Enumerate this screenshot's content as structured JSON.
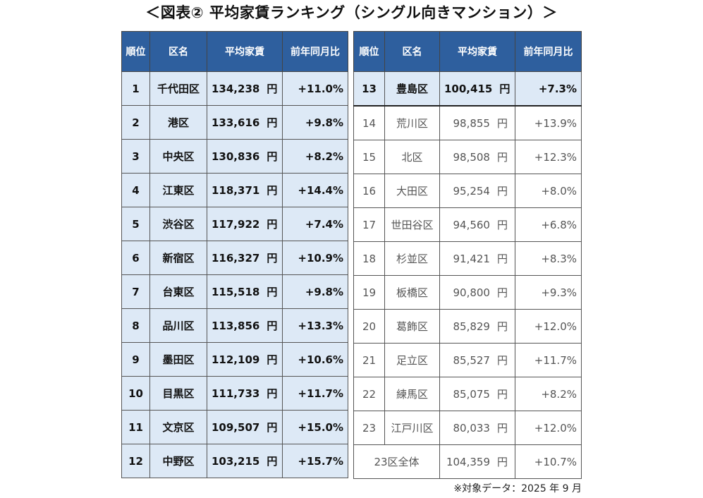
{
  "title": "＜図表② 平均家賃ランキング（シングル向きマンション）＞",
  "headers": [
    "順位",
    "区名",
    "平均家賃",
    "前年同月比"
  ],
  "currency_unit": "円",
  "colors": {
    "header_bg": "#2e5f9e",
    "highlight_bg": "#dde9f6"
  },
  "left_rows": [
    {
      "rank": "1",
      "ward": "千代田区",
      "rent": "134,238",
      "change": "+11.0%"
    },
    {
      "rank": "2",
      "ward": "港区",
      "rent": "133,616",
      "change": "+9.8%"
    },
    {
      "rank": "3",
      "ward": "中央区",
      "rent": "130,836",
      "change": "+8.2%"
    },
    {
      "rank": "4",
      "ward": "江東区",
      "rent": "118,371",
      "change": "+14.4%"
    },
    {
      "rank": "5",
      "ward": "渋谷区",
      "rent": "117,922",
      "change": "+7.4%"
    },
    {
      "rank": "6",
      "ward": "新宿区",
      "rent": "116,327",
      "change": "+10.9%"
    },
    {
      "rank": "7",
      "ward": "台東区",
      "rent": "115,518",
      "change": "+9.8%"
    },
    {
      "rank": "8",
      "ward": "品川区",
      "rent": "113,856",
      "change": "+13.3%"
    },
    {
      "rank": "9",
      "ward": "墨田区",
      "rent": "112,109",
      "change": "+10.6%"
    },
    {
      "rank": "10",
      "ward": "目黒区",
      "rent": "111,733",
      "change": "+11.7%"
    },
    {
      "rank": "11",
      "ward": "文京区",
      "rent": "109,507",
      "change": "+15.0%"
    },
    {
      "rank": "12",
      "ward": "中野区",
      "rent": "103,215",
      "change": "+15.7%"
    }
  ],
  "right_rows": [
    {
      "rank": "13",
      "ward": "豊島区",
      "rent": "100,415",
      "change": "+7.3%"
    },
    {
      "rank": "14",
      "ward": "荒川区",
      "rent": "98,855",
      "change": "+13.9%"
    },
    {
      "rank": "15",
      "ward": "北区",
      "rent": "98,508",
      "change": "+12.3%"
    },
    {
      "rank": "16",
      "ward": "大田区",
      "rent": "95,254",
      "change": "+8.0%"
    },
    {
      "rank": "17",
      "ward": "世田谷区",
      "rent": "94,560",
      "change": "+6.8%"
    },
    {
      "rank": "18",
      "ward": "杉並区",
      "rent": "91,421",
      "change": "+8.3%"
    },
    {
      "rank": "19",
      "ward": "板橋区",
      "rent": "90,800",
      "change": "+9.3%"
    },
    {
      "rank": "20",
      "ward": "葛飾区",
      "rent": "85,829",
      "change": "+12.0%"
    },
    {
      "rank": "21",
      "ward": "足立区",
      "rent": "85,527",
      "change": "+11.7%"
    },
    {
      "rank": "22",
      "ward": "練馬区",
      "rent": "85,075",
      "change": "+8.2%"
    },
    {
      "rank": "23",
      "ward": "江戸川区",
      "rent": "80,033",
      "change": "+12.0%"
    }
  ],
  "total_row": {
    "label": "23区全体",
    "rent": "104,359",
    "change": "+10.7%"
  },
  "footnote": "※対象データ：2025 年 9 月"
}
